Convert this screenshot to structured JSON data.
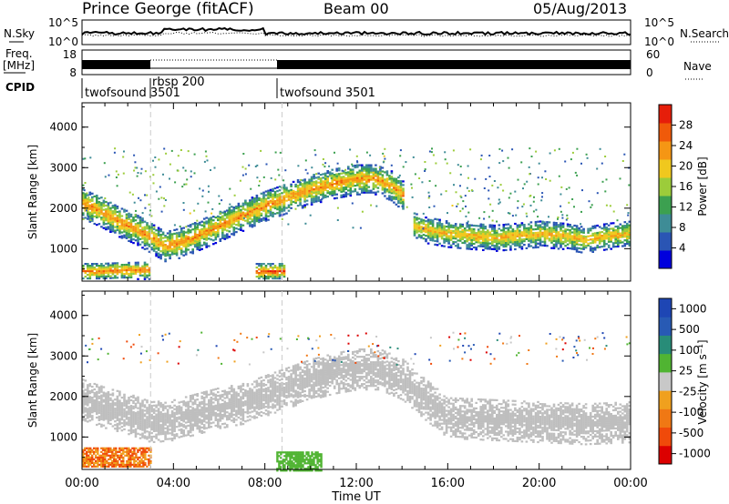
{
  "header": {
    "title": "Prince George (fitACF)",
    "beam": "Beam 00",
    "date": "05/Aug/2013"
  },
  "noise_panel": {
    "left_label": "N.Sky",
    "right_label": "N.Search",
    "y_ticks": [
      "10^5",
      "10^0"
    ]
  },
  "freq_panel": {
    "left_label_1": "Freq.",
    "left_label_2": "[MHz]",
    "left_ticks": [
      "18",
      "8"
    ],
    "right_label": "Nave",
    "right_ticks": [
      "60",
      "0"
    ]
  },
  "cpid_panel": {
    "label": "CPID",
    "programs": [
      {
        "name": "twofsound",
        "id": "3501",
        "start_hour": 0
      },
      {
        "name": "rbsp",
        "id": "200",
        "start_hour": 3
      },
      {
        "name": "twofsound",
        "id": "3501",
        "start_hour": 8.75
      }
    ]
  },
  "colors": {
    "power_scale": [
      "#0000dd",
      "#2a55b4",
      "#3e8c96",
      "#3ca050",
      "#9ccc3a",
      "#f0c81e",
      "#f59614",
      "#f05a0a",
      "#e61e0a"
    ],
    "velocity_scale": [
      "#dc0000",
      "#f04a0a",
      "#f07814",
      "#f0a01e",
      "#c8c8c8",
      "#50b432",
      "#288c78",
      "#285ab4",
      "#1e46b4"
    ],
    "ground_scatter": "#bebebe"
  },
  "chart_data": [
    {
      "type": "heatmap",
      "panel": "power",
      "ylabel": "Slant Range [km]",
      "yticks": [
        1000,
        2000,
        3000,
        4000
      ],
      "ylim": [
        200,
        4600
      ],
      "xlim": [
        0,
        24
      ],
      "colorbar": {
        "label": "Power [dB]",
        "ticks": [
          4,
          8,
          12,
          16,
          20,
          24,
          28
        ],
        "range": [
          0,
          32
        ]
      },
      "bands": [
        {
          "t": [
            0.0,
            0.8,
            1.6,
            2.4,
            3.0,
            3.6,
            4.4,
            5.2,
            6.0,
            7.0,
            8.0,
            9.0,
            10.0,
            11.0,
            12.0,
            12.8,
            13.5,
            14.0
          ],
          "range": [
            2100,
            1900,
            1650,
            1450,
            1250,
            1050,
            1150,
            1350,
            1550,
            1800,
            2050,
            2250,
            2450,
            2600,
            2700,
            2700,
            2550,
            2300
          ],
          "width": 380,
          "peak_db": 24
        },
        {
          "t": [
            14.5,
            15.0,
            16.0,
            17.0,
            18.0,
            19.0,
            20.0,
            21.0,
            22.0,
            23.0,
            24.0
          ],
          "range": [
            1550,
            1450,
            1350,
            1300,
            1250,
            1300,
            1350,
            1300,
            1200,
            1300,
            1350
          ],
          "width": 330,
          "peak_db": 22
        },
        {
          "t": [
            0.0,
            0.8,
            1.6,
            2.4,
            3.0
          ],
          "range": [
            420,
            420,
            440,
            450,
            450
          ],
          "width": 220,
          "peak_db": 26
        },
        {
          "t": [
            7.6,
            8.0,
            8.4,
            8.8
          ],
          "range": [
            420,
            420,
            420,
            420
          ],
          "width": 220,
          "peak_db": 28
        }
      ]
    },
    {
      "type": "heatmap",
      "panel": "velocity",
      "ylabel": "Slant Range [km]",
      "xlabel": "Time UT",
      "yticks": [
        1000,
        2000,
        3000,
        4000
      ],
      "ylim": [
        200,
        4600
      ],
      "xlim": [
        0,
        24
      ],
      "xtick_labels": [
        "00:00",
        "04:00",
        "08:00",
        "12:00",
        "16:00",
        "20:00",
        "00:00"
      ],
      "colorbar": {
        "label": "Velocity [m s⁻¹]",
        "ticks": [
          1000,
          500,
          100,
          25,
          -25,
          -100,
          -500,
          -1000
        ]
      },
      "ground_scatter_band": {
        "t": [
          0,
          1,
          2,
          3,
          4,
          5,
          6,
          7,
          8,
          9,
          10,
          11,
          12,
          13,
          14,
          15,
          16,
          18,
          20,
          22,
          24
        ],
        "range": [
          1900,
          1700,
          1550,
          1350,
          1400,
          1550,
          1700,
          1800,
          2000,
          2200,
          2400,
          2550,
          2650,
          2650,
          2400,
          1900,
          1450,
          1400,
          1350,
          1300,
          1350
        ],
        "width": 500
      },
      "low_range_velocity_kms": [
        {
          "t0": 0,
          "t1": 3,
          "range": 450,
          "value": -100
        },
        {
          "t0": 8.5,
          "t1": 10.5,
          "range": 350,
          "value": 100
        }
      ]
    }
  ]
}
